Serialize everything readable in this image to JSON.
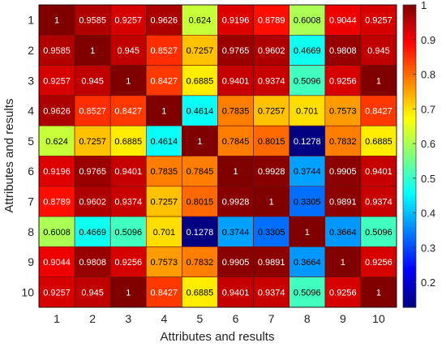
{
  "chart_data": {
    "type": "heatmap",
    "xlabel": "Attributes and results",
    "ylabel": "Attributes and results",
    "x_ticks": [
      "1",
      "2",
      "3",
      "4",
      "5",
      "6",
      "7",
      "8",
      "9",
      "10"
    ],
    "y_ticks": [
      "1",
      "2",
      "3",
      "4",
      "5",
      "6",
      "7",
      "8",
      "9",
      "10"
    ],
    "matrix": [
      [
        1,
        0.9585,
        0.9257,
        0.9626,
        0.624,
        0.9196,
        0.8789,
        0.6008,
        0.9044,
        0.9257
      ],
      [
        0.9585,
        1,
        0.945,
        0.8527,
        0.7257,
        0.9765,
        0.9602,
        0.4669,
        0.9808,
        0.945
      ],
      [
        0.9257,
        0.945,
        1,
        0.8427,
        0.6885,
        0.9401,
        0.9374,
        0.5096,
        0.9256,
        1
      ],
      [
        0.9626,
        0.8527,
        0.8427,
        1,
        0.4614,
        0.7835,
        0.7257,
        0.701,
        0.7573,
        0.8427
      ],
      [
        0.624,
        0.7257,
        0.6885,
        0.4614,
        1,
        0.7845,
        0.8015,
        0.1278,
        0.7832,
        0.6885
      ],
      [
        0.9196,
        0.9765,
        0.9401,
        0.7835,
        0.7845,
        1,
        0.9928,
        0.3744,
        0.9905,
        0.9401
      ],
      [
        0.8789,
        0.9602,
        0.9374,
        0.7257,
        0.8015,
        0.9928,
        1,
        0.3305,
        0.9891,
        0.9374
      ],
      [
        0.6008,
        0.4669,
        0.5096,
        0.701,
        0.1278,
        0.3744,
        0.3305,
        1,
        0.3664,
        0.5096
      ],
      [
        0.9044,
        0.9808,
        0.9256,
        0.7573,
        0.7832,
        0.9905,
        0.9891,
        0.3664,
        1,
        0.9256
      ],
      [
        0.9257,
        0.945,
        1,
        0.8427,
        0.6885,
        0.9401,
        0.9374,
        0.5096,
        0.9256,
        1
      ]
    ],
    "colorbar": {
      "ticks": [
        "0.2",
        "0.3",
        "0.4",
        "0.5",
        "0.6",
        "0.7",
        "0.8",
        "0.9",
        "1"
      ],
      "colormap": "jet",
      "range": [
        0.1278,
        1
      ]
    },
    "grid": false,
    "legend": "colorbar-right"
  }
}
